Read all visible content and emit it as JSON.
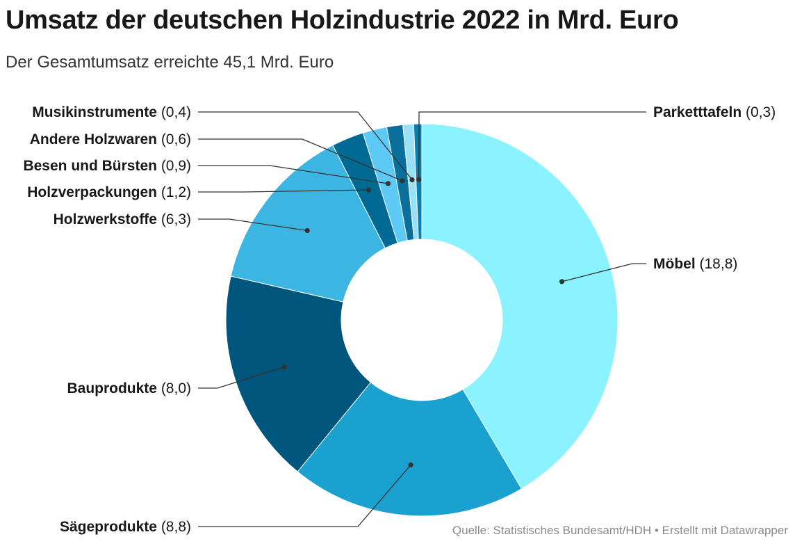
{
  "title": "Umsatz der deutschen Holzindustrie 2022 in Mrd. Euro",
  "subtitle": "Der Gesamtumsatz erreichte 45,1 Mrd. Euro",
  "source": "Quelle: Statistisches Bundesamt/HDH • Erstellt mit Datawrapper",
  "chart_data": {
    "type": "pie",
    "donut": true,
    "title": "Umsatz der deutschen Holzindustrie 2022 in Mrd. Euro",
    "subtitle": "Der Gesamtumsatz erreichte 45,1 Mrd. Euro",
    "unit": "Mrd. Euro",
    "slices": [
      {
        "name": "Möbel",
        "value": 18.8,
        "display": "(18,8)",
        "color": "#8af3ff"
      },
      {
        "name": "Sägeprodukte",
        "value": 8.8,
        "display": "(8,8)",
        "color": "#1ba1cf"
      },
      {
        "name": "Bauprodukte",
        "value": 8.0,
        "display": "(8,0)",
        "color": "#00557c"
      },
      {
        "name": "Holzwerkstoffe",
        "value": 6.3,
        "display": "(6,3)",
        "color": "#3db5e3"
      },
      {
        "name": "Holzverpackungen",
        "value": 1.2,
        "display": "(1,2)",
        "color": "#006994"
      },
      {
        "name": "Besen und Bürsten",
        "value": 0.9,
        "display": "(0,9)",
        "color": "#5dc9f5"
      },
      {
        "name": "Andere Holzwaren",
        "value": 0.6,
        "display": "(0,6)",
        "color": "#0a6f9a"
      },
      {
        "name": "Musikinstrumente",
        "value": 0.4,
        "display": "(0,4)",
        "color": "#9ae0f7"
      },
      {
        "name": "Parketttafeln",
        "value": 0.3,
        "display": "(0,3)",
        "color": "#0b7fab"
      }
    ]
  }
}
